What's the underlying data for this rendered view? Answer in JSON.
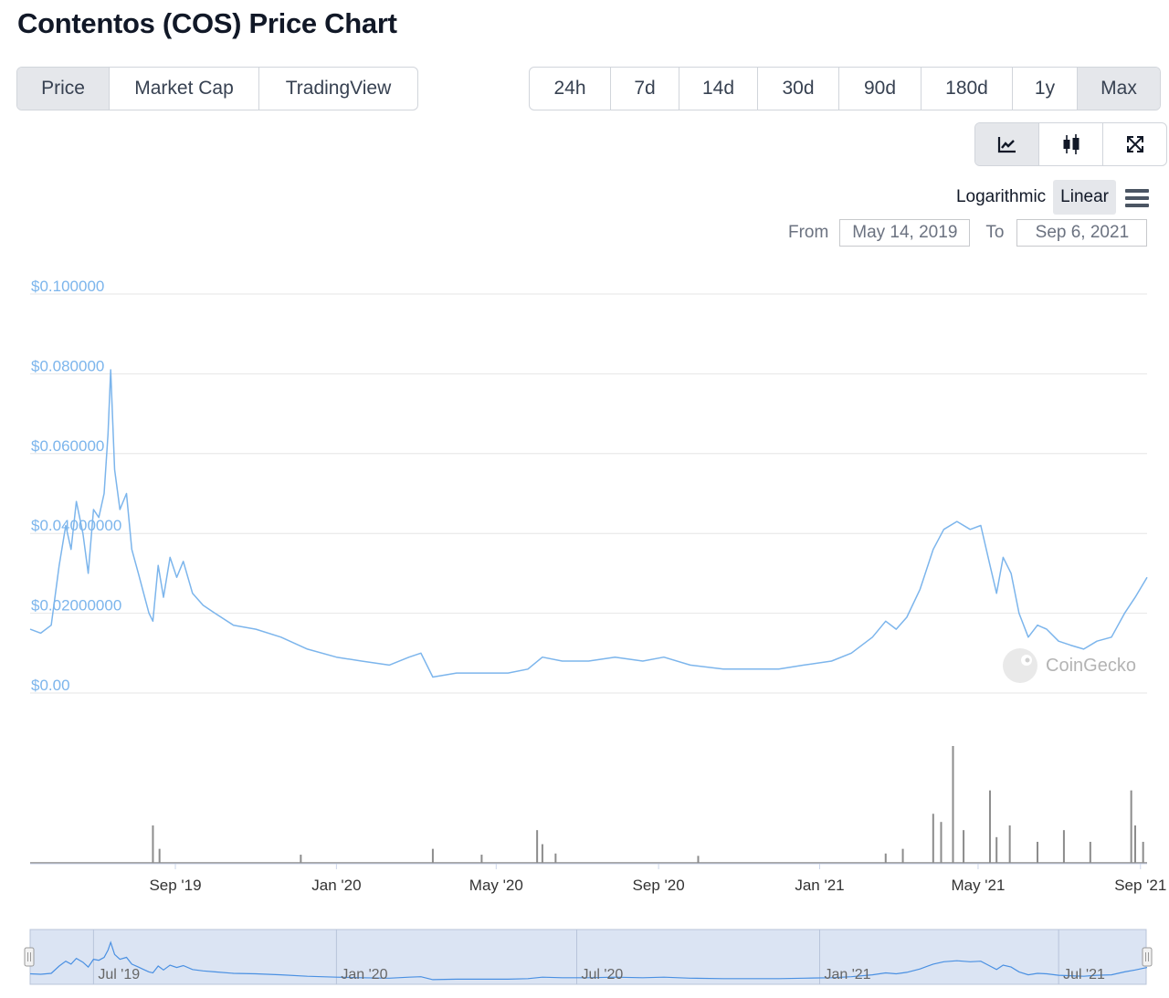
{
  "title": "Contentos (COS) Price Chart",
  "type_tabs": [
    {
      "label": "Price",
      "active": true
    },
    {
      "label": "Market Cap",
      "active": false
    },
    {
      "label": "TradingView",
      "active": false
    }
  ],
  "range_tabs": [
    {
      "label": "24h",
      "active": false
    },
    {
      "label": "7d",
      "active": false
    },
    {
      "label": "14d",
      "active": false
    },
    {
      "label": "30d",
      "active": false
    },
    {
      "label": "90d",
      "active": false
    },
    {
      "label": "180d",
      "active": false
    },
    {
      "label": "1y",
      "active": false
    },
    {
      "label": "Max",
      "active": true
    }
  ],
  "tools": [
    {
      "icon": "line-chart-icon",
      "active": true
    },
    {
      "icon": "candlestick-icon",
      "active": false
    },
    {
      "icon": "fullscreen-icon",
      "active": false
    }
  ],
  "scale": {
    "log_label": "Logarithmic",
    "linear_label": "Linear",
    "active": "Linear"
  },
  "date_range": {
    "from_label": "From",
    "from_value": "May 14, 2019",
    "to_label": "To",
    "to_value": "Sep 6, 2021"
  },
  "watermark": "CoinGecko",
  "colors": {
    "price_line": "#7cb5ec",
    "volume": "#8c8c8c",
    "navigator_fill": "#dbe4f3"
  },
  "chart_data": {
    "type": "line",
    "title": "",
    "ylim": [
      0,
      0.1
    ],
    "y_ticks": [
      {
        "value": 0.1,
        "label": "$0.100000"
      },
      {
        "value": 0.08,
        "label": "$0.080000"
      },
      {
        "value": 0.06,
        "label": "$0.060000"
      },
      {
        "value": 0.04,
        "label": "$0.04000000"
      },
      {
        "value": 0.02,
        "label": "$0.02000000"
      },
      {
        "value": 0,
        "label": "$0.00"
      }
    ],
    "x_range": [
      "2019-05-14",
      "2021-09-06"
    ],
    "x_ticks": [
      {
        "date": "2019-09-01",
        "label": "Sep '19"
      },
      {
        "date": "2020-01-01",
        "label": "Jan '20"
      },
      {
        "date": "2020-05-01",
        "label": "May '20"
      },
      {
        "date": "2020-09-01",
        "label": "Sep '20"
      },
      {
        "date": "2021-01-01",
        "label": "Jan '21"
      },
      {
        "date": "2021-05-01",
        "label": "May '21"
      },
      {
        "date": "2021-09-01",
        "label": "Sep '21"
      }
    ],
    "navigator_ticks": [
      {
        "date": "2019-07-01",
        "label": "Jul '19"
      },
      {
        "date": "2020-01-01",
        "label": "Jan '20"
      },
      {
        "date": "2020-07-01",
        "label": "Jul '20"
      },
      {
        "date": "2021-01-01",
        "label": "Jan '21"
      },
      {
        "date": "2021-07-01",
        "label": "Jul '21"
      }
    ],
    "series": [
      {
        "values": [
          [
            "2019-05-14",
            0.016
          ],
          [
            "2019-05-22",
            0.015
          ],
          [
            "2019-05-30",
            0.017
          ],
          [
            "2019-06-05",
            0.032
          ],
          [
            "2019-06-10",
            0.042
          ],
          [
            "2019-06-14",
            0.036
          ],
          [
            "2019-06-18",
            0.048
          ],
          [
            "2019-06-23",
            0.04
          ],
          [
            "2019-06-27",
            0.03
          ],
          [
            "2019-07-01",
            0.046
          ],
          [
            "2019-07-05",
            0.044
          ],
          [
            "2019-07-09",
            0.05
          ],
          [
            "2019-07-12",
            0.065
          ],
          [
            "2019-07-14",
            0.081
          ],
          [
            "2019-07-17",
            0.056
          ],
          [
            "2019-07-21",
            0.046
          ],
          [
            "2019-07-26",
            0.05
          ],
          [
            "2019-07-30",
            0.036
          ],
          [
            "2019-08-04",
            0.03
          ],
          [
            "2019-08-08",
            0.025
          ],
          [
            "2019-08-12",
            0.02
          ],
          [
            "2019-08-15",
            0.018
          ],
          [
            "2019-08-19",
            0.032
          ],
          [
            "2019-08-23",
            0.024
          ],
          [
            "2019-08-28",
            0.034
          ],
          [
            "2019-09-02",
            0.029
          ],
          [
            "2019-09-07",
            0.033
          ],
          [
            "2019-09-14",
            0.025
          ],
          [
            "2019-09-22",
            0.022
          ],
          [
            "2019-10-01",
            0.02
          ],
          [
            "2019-10-15",
            0.017
          ],
          [
            "2019-11-01",
            0.016
          ],
          [
            "2019-11-20",
            0.014
          ],
          [
            "2019-12-10",
            0.011
          ],
          [
            "2020-01-01",
            0.009
          ],
          [
            "2020-01-20",
            0.008
          ],
          [
            "2020-02-10",
            0.007
          ],
          [
            "2020-02-25",
            0.009
          ],
          [
            "2020-03-05",
            0.01
          ],
          [
            "2020-03-14",
            0.004
          ],
          [
            "2020-04-01",
            0.005
          ],
          [
            "2020-04-20",
            0.005
          ],
          [
            "2020-05-10",
            0.005
          ],
          [
            "2020-05-25",
            0.006
          ],
          [
            "2020-06-05",
            0.009
          ],
          [
            "2020-06-20",
            0.008
          ],
          [
            "2020-07-10",
            0.008
          ],
          [
            "2020-07-30",
            0.009
          ],
          [
            "2020-08-20",
            0.008
          ],
          [
            "2020-09-05",
            0.009
          ],
          [
            "2020-09-25",
            0.007
          ],
          [
            "2020-10-20",
            0.006
          ],
          [
            "2020-11-10",
            0.006
          ],
          [
            "2020-12-01",
            0.006
          ],
          [
            "2020-12-20",
            0.007
          ],
          [
            "2021-01-10",
            0.008
          ],
          [
            "2021-01-25",
            0.01
          ],
          [
            "2021-02-10",
            0.014
          ],
          [
            "2021-02-20",
            0.018
          ],
          [
            "2021-02-28",
            0.016
          ],
          [
            "2021-03-08",
            0.019
          ],
          [
            "2021-03-18",
            0.026
          ],
          [
            "2021-03-28",
            0.036
          ],
          [
            "2021-04-05",
            0.041
          ],
          [
            "2021-04-15",
            0.043
          ],
          [
            "2021-04-25",
            0.041
          ],
          [
            "2021-05-03",
            0.042
          ],
          [
            "2021-05-10",
            0.032
          ],
          [
            "2021-05-15",
            0.025
          ],
          [
            "2021-05-20",
            0.034
          ],
          [
            "2021-05-26",
            0.03
          ],
          [
            "2021-06-01",
            0.02
          ],
          [
            "2021-06-08",
            0.014
          ],
          [
            "2021-06-15",
            0.017
          ],
          [
            "2021-06-22",
            0.016
          ],
          [
            "2021-07-01",
            0.013
          ],
          [
            "2021-07-10",
            0.012
          ],
          [
            "2021-07-20",
            0.011
          ],
          [
            "2021-07-30",
            0.013
          ],
          [
            "2021-08-10",
            0.014
          ],
          [
            "2021-08-20",
            0.02
          ],
          [
            "2021-08-28",
            0.024
          ],
          [
            "2021-09-06",
            0.029
          ]
        ]
      }
    ],
    "volume_spikes": [
      [
        "2019-08-15",
        0.32
      ],
      [
        "2019-08-20",
        0.12
      ],
      [
        "2019-12-05",
        0.07
      ],
      [
        "2020-03-14",
        0.12
      ],
      [
        "2020-04-20",
        0.07
      ],
      [
        "2020-06-01",
        0.28
      ],
      [
        "2020-06-05",
        0.16
      ],
      [
        "2020-06-15",
        0.08
      ],
      [
        "2020-10-01",
        0.06
      ],
      [
        "2021-02-20",
        0.08
      ],
      [
        "2021-03-05",
        0.12
      ],
      [
        "2021-03-28",
        0.42
      ],
      [
        "2021-04-03",
        0.35
      ],
      [
        "2021-04-12",
        1.0
      ],
      [
        "2021-04-20",
        0.28
      ],
      [
        "2021-05-10",
        0.62
      ],
      [
        "2021-05-15",
        0.22
      ],
      [
        "2021-05-25",
        0.32
      ],
      [
        "2021-06-15",
        0.18
      ],
      [
        "2021-07-05",
        0.28
      ],
      [
        "2021-07-25",
        0.18
      ],
      [
        "2021-08-25",
        0.62
      ],
      [
        "2021-08-28",
        0.32
      ],
      [
        "2021-09-03",
        0.18
      ]
    ]
  }
}
